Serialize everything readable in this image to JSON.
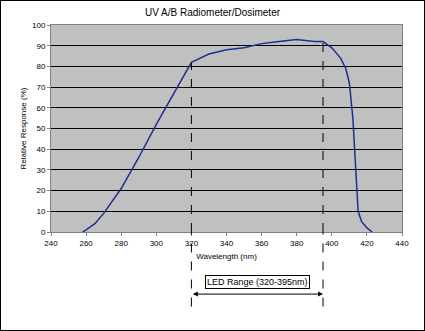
{
  "chart_data": {
    "type": "line",
    "title": "UV A/B Radiometer/Dosimeter",
    "x_label": "Wavelength (nm)",
    "y_label": "Relative Response (%)",
    "x": [
      258,
      260,
      265,
      270,
      280,
      290,
      300,
      310,
      320,
      330,
      340,
      350,
      360,
      370,
      380,
      390,
      395,
      400,
      405,
      408,
      410,
      412,
      414,
      415,
      417,
      420,
      423
    ],
    "values": [
      0,
      1,
      4,
      9,
      21,
      36,
      52,
      67,
      82,
      86,
      88,
      89,
      91,
      92,
      93,
      92,
      92,
      89,
      84,
      79,
      72,
      55,
      25,
      10,
      5,
      2,
      0
    ],
    "color": "#1f2f8f",
    "xlim": [
      240,
      440
    ],
    "ylim": [
      0,
      100
    ],
    "xticks": [
      240,
      260,
      280,
      300,
      320,
      340,
      360,
      380,
      400,
      420,
      440
    ],
    "yticks": [
      0,
      10,
      20,
      30,
      40,
      50,
      60,
      70,
      80,
      90,
      100
    ],
    "grid": true,
    "led_range": {
      "label": "LED Range (320-395nm)",
      "start": 320,
      "end": 395
    }
  }
}
